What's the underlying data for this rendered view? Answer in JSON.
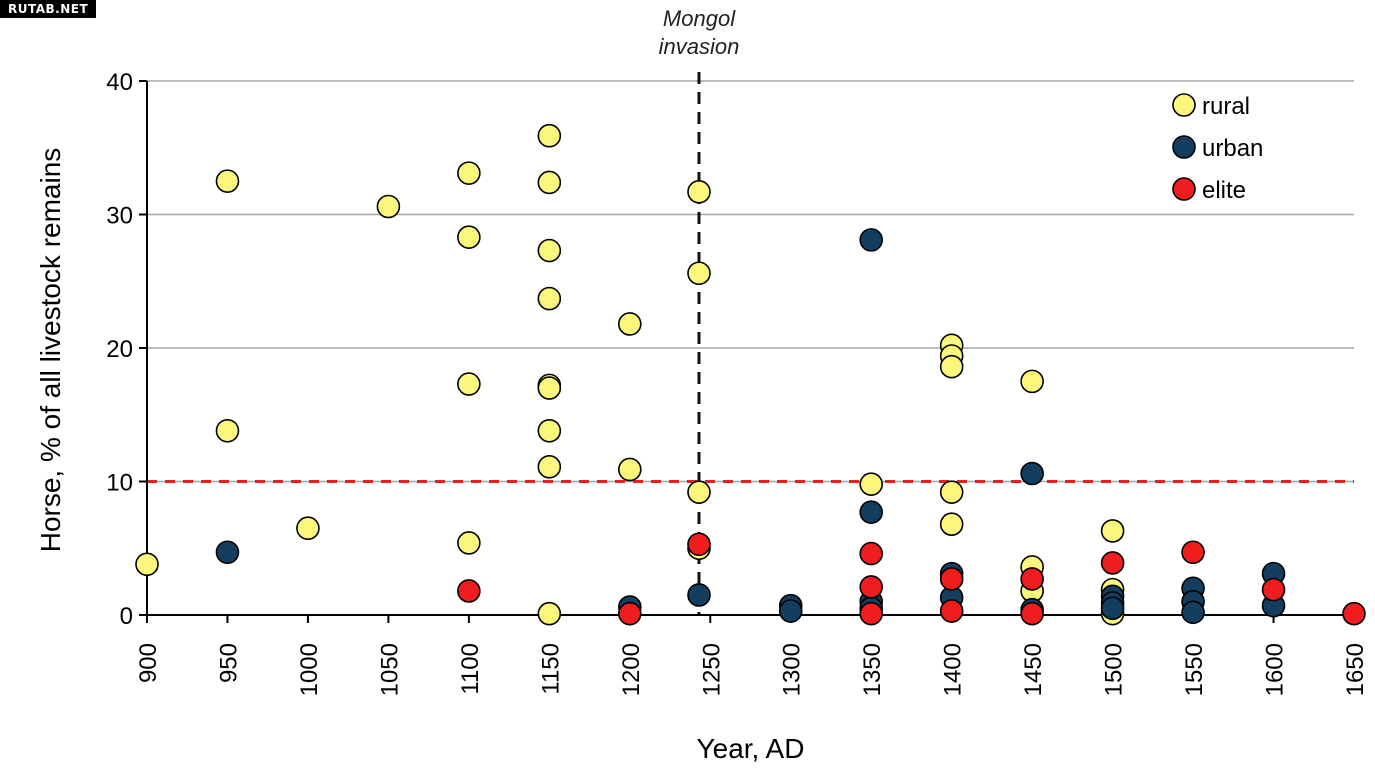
{
  "watermark": "RUTAB.NET",
  "chart_data": {
    "type": "scatter",
    "xlabel": "Year, AD",
    "ylabel": "Horse, % of all livestock remains",
    "xlim": [
      900,
      1650
    ],
    "ylim": [
      0,
      40
    ],
    "x_ticks": [
      900,
      950,
      1000,
      1050,
      1100,
      1150,
      1200,
      1250,
      1300,
      1350,
      1400,
      1450,
      1500,
      1550,
      1600,
      1650
    ],
    "y_ticks": [
      0,
      10,
      20,
      30,
      40
    ],
    "grid": "horizontal",
    "legend_position": "top-right",
    "reference_lines": [
      {
        "orientation": "horizontal",
        "value": 10,
        "style": "dashed",
        "color": "#e8201f"
      },
      {
        "orientation": "vertical",
        "value": 1243,
        "style": "dashed",
        "color": "#111111",
        "label": "Mongol invasion"
      }
    ],
    "series": [
      {
        "name": "rural",
        "color": "#fbf77d",
        "points": [
          [
            900,
            3.8
          ],
          [
            950,
            32.5
          ],
          [
            950,
            13.8
          ],
          [
            1000,
            6.5
          ],
          [
            1050,
            30.6
          ],
          [
            1100,
            33.1
          ],
          [
            1100,
            28.3
          ],
          [
            1100,
            17.3
          ],
          [
            1100,
            5.4
          ],
          [
            1150,
            35.9
          ],
          [
            1150,
            32.4
          ],
          [
            1150,
            27.3
          ],
          [
            1150,
            23.7
          ],
          [
            1150,
            17.2
          ],
          [
            1150,
            17.0
          ],
          [
            1150,
            13.8
          ],
          [
            1150,
            11.1
          ],
          [
            1150,
            0.1
          ],
          [
            1200,
            21.8
          ],
          [
            1200,
            10.9
          ],
          [
            1243,
            31.7
          ],
          [
            1243,
            25.6
          ],
          [
            1243,
            9.2
          ],
          [
            1243,
            5.0
          ],
          [
            1350,
            9.8
          ],
          [
            1400,
            20.2
          ],
          [
            1400,
            19.4
          ],
          [
            1400,
            18.6
          ],
          [
            1400,
            9.2
          ],
          [
            1400,
            6.8
          ],
          [
            1450,
            17.5
          ],
          [
            1450,
            3.6
          ],
          [
            1450,
            1.8
          ],
          [
            1500,
            6.3
          ],
          [
            1500,
            1.9
          ],
          [
            1500,
            0.1
          ]
        ]
      },
      {
        "name": "urban",
        "color": "#133e5f",
        "points": [
          [
            950,
            4.7
          ],
          [
            1200,
            0.6
          ],
          [
            1243,
            1.5
          ],
          [
            1300,
            0.7
          ],
          [
            1300,
            0.3
          ],
          [
            1350,
            28.1
          ],
          [
            1350,
            7.7
          ],
          [
            1350,
            1.0
          ],
          [
            1350,
            0.5
          ],
          [
            1400,
            3.1
          ],
          [
            1400,
            1.3
          ],
          [
            1450,
            10.6
          ],
          [
            1450,
            0.4
          ],
          [
            1500,
            1.4
          ],
          [
            1500,
            0.9
          ],
          [
            1500,
            0.5
          ],
          [
            1550,
            2.0
          ],
          [
            1550,
            1.0
          ],
          [
            1550,
            0.2
          ],
          [
            1600,
            3.1
          ],
          [
            1600,
            0.7
          ]
        ]
      },
      {
        "name": "elite",
        "color": "#ef1d1d",
        "points": [
          [
            1100,
            1.8
          ],
          [
            1200,
            0.1
          ],
          [
            1243,
            5.3
          ],
          [
            1350,
            4.6
          ],
          [
            1350,
            2.1
          ],
          [
            1350,
            0.1
          ],
          [
            1400,
            2.7
          ],
          [
            1400,
            0.3
          ],
          [
            1450,
            2.7
          ],
          [
            1450,
            0.1
          ],
          [
            1500,
            3.9
          ],
          [
            1550,
            4.7
          ],
          [
            1600,
            1.9
          ],
          [
            1650,
            0.1
          ]
        ]
      }
    ],
    "annotations": [
      {
        "text_lines": [
          "Mongol",
          "invasion"
        ],
        "anchor_x": 1243
      }
    ]
  }
}
